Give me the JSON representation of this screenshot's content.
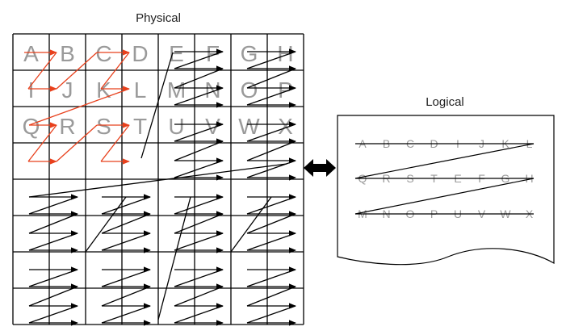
{
  "physical": {
    "title": "Physical",
    "rows": [
      [
        "A",
        "B",
        "C",
        "D",
        "E",
        "F",
        "G",
        "H"
      ],
      [
        "I",
        "J",
        "K",
        "L",
        "M",
        "N",
        "O",
        "P"
      ],
      [
        "Q",
        "R",
        "S",
        "T",
        "U",
        "V",
        "W",
        "X"
      ]
    ]
  },
  "logical": {
    "title": "Logical",
    "lines": [
      [
        "A",
        "B",
        "C",
        "D",
        "I",
        "J",
        "K",
        "L"
      ],
      [
        "Q",
        "R",
        "S",
        "T",
        "E",
        "F",
        "G",
        "H"
      ],
      [
        "M",
        "N",
        "O",
        "P",
        "U",
        "V",
        "W",
        "X"
      ]
    ]
  },
  "colors": {
    "grid": "#000000",
    "letters": "#9a9a9a",
    "red_path": "#e8401c",
    "black_path": "#000000"
  }
}
